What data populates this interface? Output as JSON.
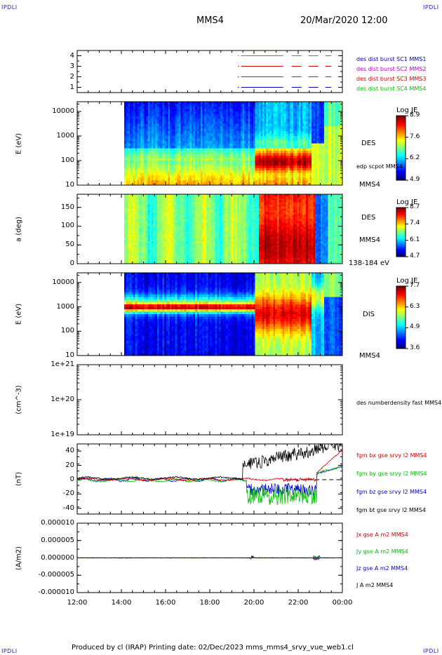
{
  "corners": {
    "tl": "IPDLI",
    "tr": "IPDLI",
    "bl": "IPDLI",
    "br": "IPDLI"
  },
  "header": {
    "spacecraft": "MMS4",
    "datetime": "20/Mar/2020 12:00"
  },
  "footer": {
    "text": "Produced by cl (IRAP)   Printing date: 02/Dec/2023   mms_mms4_srvy_vue_web1.cl"
  },
  "chart_data": [
    {
      "type": "line",
      "panel": "availability",
      "ylim": [
        0.5,
        4.5
      ],
      "yticks": [
        "1",
        "2",
        "3",
        "4"
      ],
      "series": [
        {
          "name": "des dist burst SC1 MMS1",
          "color": "#0000c0",
          "level": 1
        },
        {
          "name": "des dist burst SC2 MMS2",
          "color": "#c000c0",
          "level": 2
        },
        {
          "name": "des dist burst SC3 MMS3",
          "color": "#d00000",
          "level": 3
        },
        {
          "name": "des dist burst SC4 MMS4",
          "color": "#00c000",
          "level": 4
        }
      ]
    },
    {
      "type": "heatmap",
      "panel": "des-energy",
      "ylabel": "E (eV)",
      "scale": "log",
      "ylim": [
        10,
        25000
      ],
      "yticks": [
        "10",
        "100",
        "1000",
        "10000"
      ],
      "label": "DES",
      "sublabel": "MMS4",
      "overlay": "edp scpot MMS4",
      "colorbar": {
        "title": "Log JE",
        "ticks": [
          "8.9",
          "7.6",
          "6.2",
          "4.9"
        ]
      }
    },
    {
      "type": "heatmap",
      "panel": "des-pitch",
      "ylabel": "a (deg)",
      "ylim": [
        0,
        180
      ],
      "yticks": [
        "0",
        "50",
        "100",
        "150"
      ],
      "label": "DES",
      "sublabel": "MMS4",
      "energy_range": "138-184 eV",
      "colorbar": {
        "title": "Log JE",
        "ticks": [
          "8.7",
          "7.4",
          "6.1",
          "4.7"
        ]
      }
    },
    {
      "type": "heatmap",
      "panel": "dis-energy",
      "ylabel": "E (eV)",
      "scale": "log",
      "ylim": [
        10,
        25000
      ],
      "yticks": [
        "10",
        "100",
        "1000",
        "10000"
      ],
      "label": "DIS",
      "sublabel": "MMS4",
      "colorbar": {
        "title": "Log JE",
        "ticks": [
          "7.7",
          "6.3",
          "4.9",
          "3.6"
        ]
      }
    },
    {
      "type": "line",
      "panel": "density",
      "ylabel": "(cm^-3)",
      "scale": "log",
      "ylim": [
        1e+19,
        1e+21
      ],
      "yticks": [
        "1e+19",
        "1e+20",
        "1e+21"
      ],
      "series": [
        {
          "name": "des numberdensity fast MMS4",
          "color": "#000000"
        }
      ]
    },
    {
      "type": "line",
      "panel": "bfield",
      "ylabel": "(nT)",
      "ylim": [
        -48,
        50
      ],
      "yticks": [
        "-40",
        "-20",
        "0",
        "20",
        "40"
      ],
      "series": [
        {
          "name": "fgm bx gse srvy l2 MMS4",
          "color": "#d00000"
        },
        {
          "name": "fgm by gse srvy l2 MMS4",
          "color": "#00c000"
        },
        {
          "name": "fgm bz gse srvy l2 MMS4",
          "color": "#0000d0"
        },
        {
          "name": "fgm bt gse srvy l2 MMS4",
          "color": "#000000"
        }
      ]
    },
    {
      "type": "line",
      "panel": "current",
      "ylabel": "(A/m2)",
      "ylim": [
        -1e-05,
        1e-05
      ],
      "yticks": [
        "-0.000010",
        "-0.000005",
        "0.000000",
        "0.000005",
        "0.000010"
      ],
      "series": [
        {
          "name": "Jx gse A m2 MMS4",
          "color": "#d00000"
        },
        {
          "name": "Jy gse A m2 MMS4",
          "color": "#00c000"
        },
        {
          "name": "Jz gse A m2 MMS4",
          "color": "#0000d0"
        },
        {
          "name": "J A m2 MMS4",
          "color": "#000000"
        }
      ],
      "xticks": [
        "12:00",
        "14:00",
        "16:00",
        "18:00",
        "20:00",
        "22:00",
        "00:00"
      ]
    }
  ]
}
